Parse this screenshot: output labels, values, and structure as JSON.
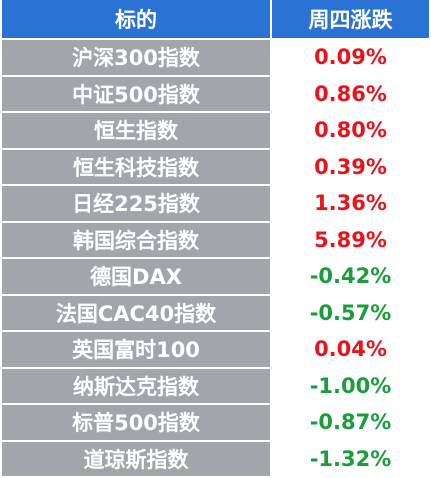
{
  "table": {
    "header": [
      "标的",
      "周四涨跌"
    ],
    "header_color": "#2a72d4",
    "name_cell_color": "#a2a6ab",
    "rows": [
      {
        "name": "沪深300指数",
        "change": "0.09%",
        "color": "#e8141c"
      },
      {
        "name": "中证500指数",
        "change": "0.86%",
        "color": "#e8141c"
      },
      {
        "name": "恒生指数",
        "change": "0.80%",
        "color": "#e8141c"
      },
      {
        "name": "恒生科技指数",
        "change": "0.39%",
        "color": "#e8141c"
      },
      {
        "name": "日经225指数",
        "change": "1.36%",
        "color": "#e8141c"
      },
      {
        "name": "韩国综合指数",
        "change": "5.89%",
        "color": "#e8141c"
      },
      {
        "name": "德国DAX",
        "change": "-0.42%",
        "color": "#1a9e3c"
      },
      {
        "name": "法国CAC40指数",
        "change": "-0.57%",
        "color": "#1a9e3c"
      },
      {
        "name": "英国富时100",
        "change": "0.04%",
        "color": "#e8141c"
      },
      {
        "name": "纳斯达克指数",
        "change": "-1.00%",
        "color": "#1a9e3c"
      },
      {
        "name": "标普500指数",
        "change": "-0.87%",
        "color": "#1a9e3c"
      },
      {
        "name": "道琼斯指数",
        "change": "-1.32%",
        "color": "#1a9e3c"
      }
    ]
  }
}
